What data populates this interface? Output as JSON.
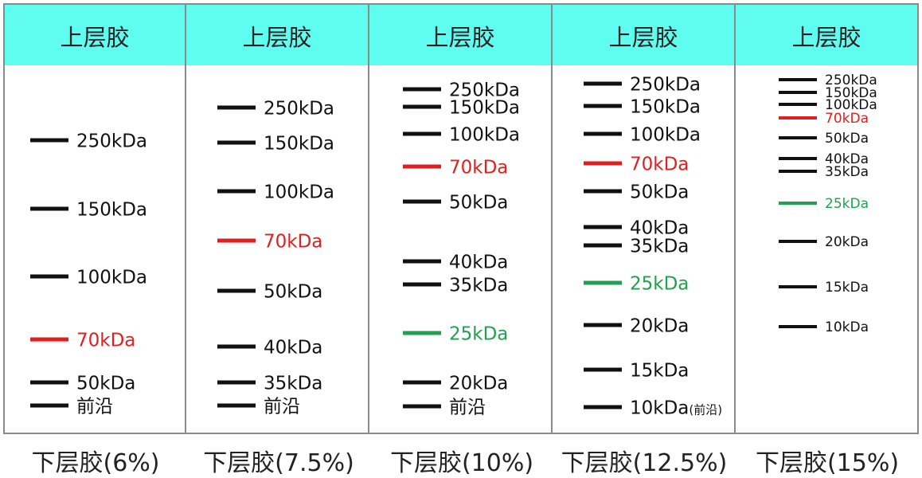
{
  "colors": {
    "header_bg": "#5ffdf0",
    "border": "#8a8a8a",
    "band": "#111111",
    "band_70": "#e02020",
    "band_25": "#20a050"
  },
  "columns": [
    {
      "header": "上层胶",
      "footer": "下层胶(6%)",
      "markers": [
        {
          "label": "250kDa",
          "color": "band"
        },
        {
          "label": "150kDa",
          "color": "band"
        },
        {
          "label": "100kDa",
          "color": "band"
        },
        {
          "label": "70kDa",
          "color": "band_70"
        },
        {
          "label": "50kDa",
          "color": "band"
        },
        {
          "label": "前沿",
          "color": "band"
        }
      ]
    },
    {
      "header": "上层胶",
      "footer": "下层胶(7.5%)",
      "markers": [
        {
          "label": "250kDa",
          "color": "band"
        },
        {
          "label": "150kDa",
          "color": "band"
        },
        {
          "label": "100kDa",
          "color": "band"
        },
        {
          "label": "70kDa",
          "color": "band_70"
        },
        {
          "label": "50kDa",
          "color": "band"
        },
        {
          "label": "40kDa",
          "color": "band"
        },
        {
          "label": "35kDa",
          "color": "band"
        },
        {
          "label": "前沿",
          "color": "band"
        }
      ]
    },
    {
      "header": "上层胶",
      "footer": "下层胶(10%)",
      "markers": [
        {
          "label": "250kDa",
          "color": "band"
        },
        {
          "label": "150kDa",
          "color": "band"
        },
        {
          "label": "100kDa",
          "color": "band"
        },
        {
          "label": "70kDa",
          "color": "band_70"
        },
        {
          "label": "50kDa",
          "color": "band"
        },
        {
          "label": "40kDa",
          "color": "band"
        },
        {
          "label": "35kDa",
          "color": "band"
        },
        {
          "label": "25kDa",
          "color": "band_25"
        },
        {
          "label": "20kDa",
          "color": "band"
        },
        {
          "label": "前沿",
          "color": "band"
        }
      ]
    },
    {
      "header": "上层胶",
      "footer": "下层胶(12.5%)",
      "markers": [
        {
          "label": "250kDa",
          "color": "band"
        },
        {
          "label": "150kDa",
          "color": "band"
        },
        {
          "label": "100kDa",
          "color": "band"
        },
        {
          "label": "70kDa",
          "color": "band_70"
        },
        {
          "label": "50kDa",
          "color": "band"
        },
        {
          "label": "40kDa",
          "color": "band"
        },
        {
          "label": "35kDa",
          "color": "band"
        },
        {
          "label": "25kDa",
          "color": "band_25"
        },
        {
          "label": "20kDa",
          "color": "band"
        },
        {
          "label": "15kDa",
          "color": "band"
        },
        {
          "label": "10kDa",
          "color": "band",
          "note": "(前沿)"
        }
      ]
    },
    {
      "header": "上层胶",
      "footer": "下层胶(15%)",
      "markers": [
        {
          "label": "250kDa",
          "color": "band"
        },
        {
          "label": "150kDa",
          "color": "band"
        },
        {
          "label": "100kDa",
          "color": "band"
        },
        {
          "label": "70kDa",
          "color": "band_70"
        },
        {
          "label": "50kDa",
          "color": "band"
        },
        {
          "label": "40kDa",
          "color": "band"
        },
        {
          "label": "35kDa",
          "color": "band"
        },
        {
          "label": "25kDa",
          "color": "band_25"
        },
        {
          "label": "20kDa",
          "color": "band"
        },
        {
          "label": "15kDa",
          "color": "band"
        },
        {
          "label": "10kDa",
          "color": "band"
        }
      ]
    }
  ]
}
